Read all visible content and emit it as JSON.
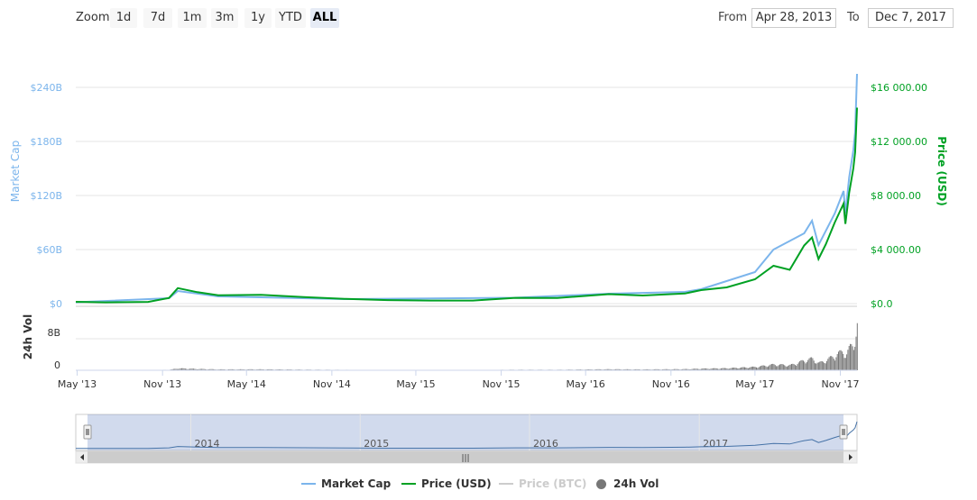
{
  "toolbar": {
    "zoom_label": "Zoom",
    "zoom_buttons": [
      "1d",
      "7d",
      "1m",
      "3m",
      "1y",
      "YTD",
      "ALL"
    ],
    "active_zoom": "ALL",
    "from_label": "From",
    "from_value": "Apr 28, 2013",
    "to_label": "To",
    "to_value": "Dec 7, 2017"
  },
  "chart_data": {
    "type": "line",
    "xlabel": "",
    "x_ticks": [
      "May '13",
      "Nov '13",
      "May '14",
      "Nov '14",
      "May '15",
      "Nov '15",
      "May '16",
      "Nov '16",
      "May '17",
      "Nov '17"
    ],
    "x_range": [
      "2013-04-28",
      "2017-12-07"
    ],
    "y_left": {
      "label": "Market Cap",
      "ticks": [
        "$0",
        "$60B",
        "$120B",
        "$180B",
        "$240B"
      ],
      "range": [
        0,
        240
      ]
    },
    "y_right": {
      "label": "Price (USD)",
      "ticks": [
        "$0.0",
        "$4 000.00",
        "$8 000.00",
        "$12 000.00",
        "$16 000.00"
      ],
      "range": [
        0,
        16000
      ]
    },
    "volume_axis": {
      "label": "24h Vol",
      "ticks": [
        "0",
        "8B"
      ]
    },
    "navigator_years": [
      "2014",
      "2015",
      "2016",
      "2017"
    ],
    "grid": true,
    "legend_position": "bottom",
    "colors": {
      "market_cap": "#7cb5ec",
      "price_usd": "#00a123",
      "price_btc": "#cccccc",
      "volume": "#777777",
      "navigator": "#4572a7"
    },
    "series": [
      {
        "name": "Price (USD)",
        "x": [
          "2013-04-28",
          "2013-07-01",
          "2013-10-01",
          "2013-11-15",
          "2013-12-04",
          "2014-01-15",
          "2014-03-01",
          "2014-06-01",
          "2014-09-01",
          "2014-12-01",
          "2015-03-01",
          "2015-06-01",
          "2015-09-01",
          "2015-12-01",
          "2016-03-01",
          "2016-06-20",
          "2016-09-01",
          "2016-12-01",
          "2017-01-05",
          "2017-03-01",
          "2017-05-01",
          "2017-06-10",
          "2017-07-15",
          "2017-08-15",
          "2017-09-01",
          "2017-09-15",
          "2017-10-01",
          "2017-10-20",
          "2017-11-08",
          "2017-11-12",
          "2017-11-20",
          "2017-11-29",
          "2017-12-03",
          "2017-12-07"
        ],
        "values": [
          134,
          90,
          130,
          420,
          1150,
          850,
          620,
          650,
          480,
          350,
          260,
          230,
          230,
          430,
          415,
          700,
          600,
          750,
          1000,
          1200,
          1800,
          2800,
          2500,
          4300,
          4900,
          3300,
          4400,
          6000,
          7400,
          5900,
          8200,
          10000,
          11200,
          14500
        ]
      },
      {
        "name": "Market Cap ($B)",
        "x": [
          "2013-04-28",
          "2013-11-15",
          "2013-12-04",
          "2014-03-01",
          "2014-12-01",
          "2015-12-01",
          "2016-06-20",
          "2016-12-01",
          "2017-01-05",
          "2017-05-01",
          "2017-06-10",
          "2017-08-15",
          "2017-09-01",
          "2017-09-15",
          "2017-10-20",
          "2017-11-08",
          "2017-11-12",
          "2017-11-20",
          "2017-11-29",
          "2017-12-03",
          "2017-12-07"
        ],
        "values": [
          1.5,
          6,
          14,
          8,
          5,
          6.5,
          11,
          13,
          16,
          35,
          60,
          78,
          92,
          65,
          100,
          125,
          100,
          140,
          170,
          190,
          255
        ]
      }
    ],
    "legend": [
      "Market Cap",
      "Price (USD)",
      "Price (BTC)",
      "24h Vol"
    ],
    "hidden_series": [
      "Price (BTC)"
    ]
  },
  "navigator": {
    "scroll_grip": "scroll-grip-icon",
    "left_arrow": "arrow-left-icon",
    "right_arrow": "arrow-right-icon"
  }
}
